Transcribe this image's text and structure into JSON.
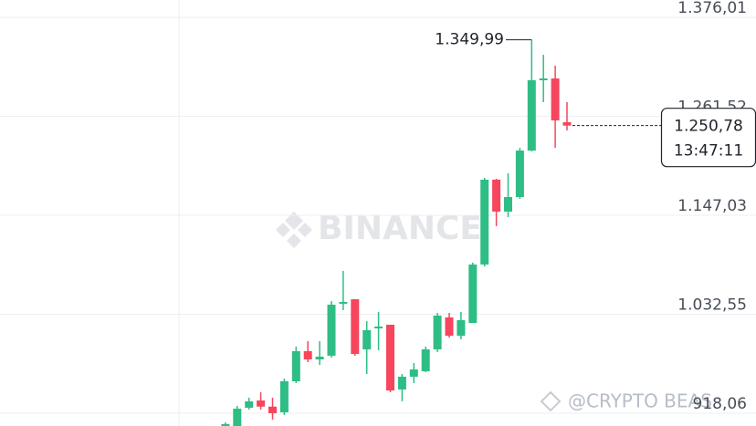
{
  "chart_data": {
    "type": "candlestick",
    "watermark": "BINANCE",
    "credit": "@CRYPTO BEAS",
    "up_color": "#2ebd85",
    "down_color": "#f6465d",
    "ylim": [
      903.28,
      1396.06
    ],
    "yticks": [
      {
        "value": 1376.01,
        "label": "1.376,01"
      },
      {
        "value": 1261.52,
        "label": "1.261,52"
      },
      {
        "value": 1147.03,
        "label": "1.147,03"
      },
      {
        "value": 1032.55,
        "label": "1.032,55"
      },
      {
        "value": 918.06,
        "label": "918,06"
      }
    ],
    "grid": true,
    "open": [
      903.3,
      903.3,
      924.4,
      932.8,
      925.7,
      919.1,
      955.0,
      989.8,
      980.3,
      984.6,
      1044.7,
      1049.9,
      991.9,
      1016.2,
      1020.4,
      945.5,
      960.3,
      966.6,
      991.9,
      1028.9,
      1007.7,
      1022.5,
      1090.1,
      1188.2,
      1151.3,
      1168.1,
      1221.9,
      1303.2,
      1305.3,
      1254.7
    ],
    "high": [
      907.5,
      926.5,
      936.0,
      942.3,
      936.0,
      958.2,
      995.1,
      1001.4,
      1001.4,
      1047.8,
      1082.7,
      1049.9,
      1024.6,
      1035.2,
      1020.4,
      963.4,
      976.1,
      995.1,
      1034.1,
      1034.1,
      1035.2,
      1092.2,
      1190.3,
      1189.3,
      1195.6,
      1225.1,
      1349.99,
      1332.7,
      1320.1,
      1277.9
    ],
    "low": [
      903.3,
      903.3,
      922.3,
      922.3,
      910.7,
      916.0,
      952.9,
      977.1,
      974.0,
      982.4,
      1037.3,
      984.6,
      963.4,
      990.9,
      942.3,
      931.8,
      952.9,
      965.5,
      988.8,
      1005.6,
      1003.5,
      1022.5,
      1087.9,
      1134.4,
      1144.9,
      1166.0,
      1220.9,
      1277.9,
      1225.1,
      1245.2
    ],
    "close": [
      905.4,
      923.3,
      931.8,
      925.7,
      918.1,
      955.0,
      989.8,
      980.3,
      983.5,
      1043.6,
      1046.8,
      986.6,
      1014.1,
      1018.3,
      944.4,
      960.3,
      968.7,
      991.9,
      1031.0,
      1007.7,
      1025.7,
      1090.1,
      1188.2,
      1151.3,
      1168.1,
      1221.9,
      1303.2,
      1305.3,
      1256.8,
      1250.78
    ],
    "high_label": {
      "value": 1349.99,
      "label": "1.349,99"
    },
    "last_price": {
      "value": 1250.78,
      "label": "1.250,78",
      "time": "13:47:11"
    }
  }
}
